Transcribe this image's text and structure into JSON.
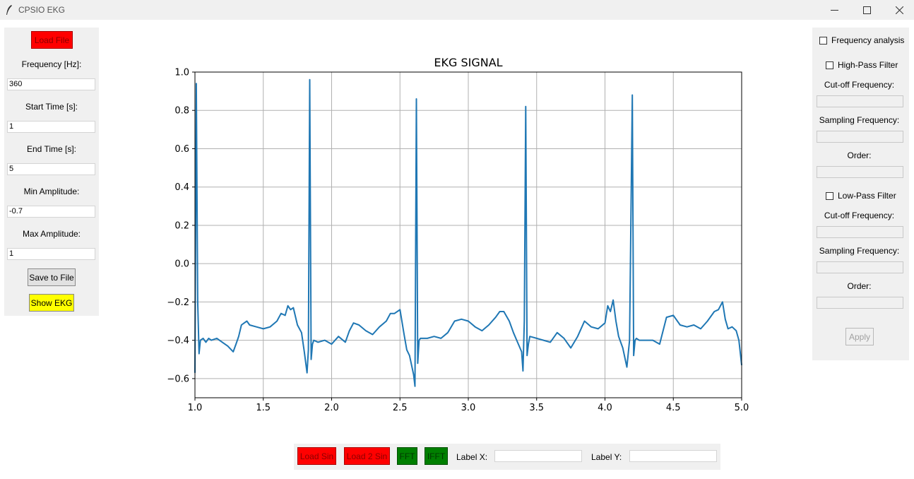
{
  "window": {
    "title": "CPSIO EKG",
    "icon": "feather-icon",
    "controls": [
      "minimize-icon",
      "maximize-icon",
      "close-icon"
    ]
  },
  "left_panel": {
    "load_file": "Load File",
    "frequency_label": "Frequency [Hz]:",
    "frequency_value": "360",
    "start_label": "Start Time [s]:",
    "start_value": "1",
    "end_label": "End Time [s]:",
    "end_value": "5",
    "min_amp_label": "Min Amplitude:",
    "min_amp_value": "-0.7",
    "max_amp_label": "Max Amplitude:",
    "max_amp_value": "1",
    "save_button": "Save to File",
    "show_button": "Show EKG"
  },
  "right_panel": {
    "freq_analysis": "Frequency analysis",
    "high_pass": "High-Pass Filter",
    "hp_cutoff_label": "Cut-off Frequency:",
    "hp_sampling_label": "Sampling Frequency:",
    "hp_order_label": "Order:",
    "low_pass": "Low-Pass Filter",
    "lp_cutoff_label": "Cut-off Frequency:",
    "lp_sampling_label": "Sampling Frequency:",
    "lp_order_label": "Order:",
    "apply": "Apply"
  },
  "bottom_panel": {
    "load_sin": "Load Sin",
    "load_2sin": "Load 2 Sin",
    "fft": "FFT",
    "ifft": "IFFT",
    "label_x": "Label X:",
    "label_y": "Label Y:",
    "label_x_value": "",
    "label_y_value": ""
  },
  "colors": {
    "line": "#1f77b4",
    "grid": "#b0b0b0",
    "panel": "#f0f0f0",
    "red_button": "#ff0000",
    "green_button": "#007f00",
    "yellow_button": "#ffff00"
  },
  "chart_data": {
    "type": "line",
    "title": "EKG SIGNAL",
    "xlabel": "",
    "ylabel": "",
    "xlim": [
      1.0,
      5.0
    ],
    "ylim": [
      -0.7,
      1.0
    ],
    "grid": true,
    "xticks": [
      "1.0",
      "1.5",
      "2.0",
      "2.5",
      "3.0",
      "3.5",
      "4.0",
      "4.5",
      "5.0"
    ],
    "yticks": [
      "−0.6",
      "−0.4",
      "−0.2",
      "0.0",
      "0.2",
      "0.4",
      "0.6",
      "0.8",
      "1.0"
    ],
    "x": [
      1.0,
      1.01,
      1.02,
      1.03,
      1.04,
      1.06,
      1.08,
      1.1,
      1.12,
      1.16,
      1.2,
      1.24,
      1.28,
      1.3,
      1.32,
      1.34,
      1.36,
      1.38,
      1.4,
      1.45,
      1.5,
      1.55,
      1.6,
      1.63,
      1.66,
      1.68,
      1.7,
      1.72,
      1.75,
      1.78,
      1.8,
      1.82,
      1.83,
      1.84,
      1.85,
      1.86,
      1.87,
      1.9,
      1.95,
      2.0,
      2.05,
      2.1,
      2.13,
      2.16,
      2.2,
      2.25,
      2.3,
      2.35,
      2.4,
      2.43,
      2.46,
      2.5,
      2.53,
      2.55,
      2.57,
      2.6,
      2.61,
      2.62,
      2.63,
      2.64,
      2.65,
      2.7,
      2.75,
      2.8,
      2.85,
      2.9,
      2.95,
      3.0,
      3.05,
      3.1,
      3.15,
      3.2,
      3.23,
      3.26,
      3.3,
      3.33,
      3.36,
      3.39,
      3.4,
      3.41,
      3.42,
      3.43,
      3.44,
      3.45,
      3.5,
      3.55,
      3.6,
      3.65,
      3.7,
      3.75,
      3.8,
      3.85,
      3.9,
      3.95,
      4.0,
      4.02,
      4.04,
      4.06,
      4.08,
      4.1,
      4.13,
      4.16,
      4.18,
      4.2,
      4.21,
      4.22,
      4.23,
      4.25,
      4.3,
      4.35,
      4.4,
      4.45,
      4.5,
      4.55,
      4.6,
      4.65,
      4.7,
      4.75,
      4.8,
      4.83,
      4.86,
      4.88,
      4.9,
      4.93,
      4.96,
      4.98,
      5.0
    ],
    "y": [
      -0.57,
      0.94,
      -0.2,
      -0.47,
      -0.4,
      -0.39,
      -0.41,
      -0.39,
      -0.4,
      -0.39,
      -0.41,
      -0.43,
      -0.46,
      -0.42,
      -0.38,
      -0.32,
      -0.31,
      -0.3,
      -0.32,
      -0.33,
      -0.34,
      -0.33,
      -0.3,
      -0.26,
      -0.27,
      -0.22,
      -0.24,
      -0.23,
      -0.32,
      -0.36,
      -0.46,
      -0.57,
      -0.45,
      0.96,
      -0.5,
      -0.42,
      -0.4,
      -0.41,
      -0.4,
      -0.42,
      -0.38,
      -0.41,
      -0.35,
      -0.31,
      -0.32,
      -0.35,
      -0.37,
      -0.33,
      -0.3,
      -0.26,
      -0.26,
      -0.24,
      -0.37,
      -0.45,
      -0.48,
      -0.58,
      -0.64,
      0.86,
      -0.52,
      -0.4,
      -0.39,
      -0.39,
      -0.38,
      -0.39,
      -0.36,
      -0.3,
      -0.29,
      -0.3,
      -0.33,
      -0.35,
      -0.32,
      -0.28,
      -0.25,
      -0.25,
      -0.3,
      -0.36,
      -0.41,
      -0.46,
      -0.56,
      -0.3,
      0.82,
      -0.48,
      -0.42,
      -0.38,
      -0.39,
      -0.4,
      -0.41,
      -0.36,
      -0.39,
      -0.44,
      -0.38,
      -0.3,
      -0.33,
      -0.34,
      -0.31,
      -0.22,
      -0.25,
      -0.19,
      -0.3,
      -0.38,
      -0.44,
      -0.54,
      -0.4,
      0.88,
      -0.48,
      -0.4,
      -0.39,
      -0.4,
      -0.4,
      -0.4,
      -0.42,
      -0.28,
      -0.27,
      -0.32,
      -0.33,
      -0.32,
      -0.34,
      -0.3,
      -0.25,
      -0.24,
      -0.2,
      -0.29,
      -0.34,
      -0.33,
      -0.35,
      -0.4,
      -0.53
    ]
  }
}
